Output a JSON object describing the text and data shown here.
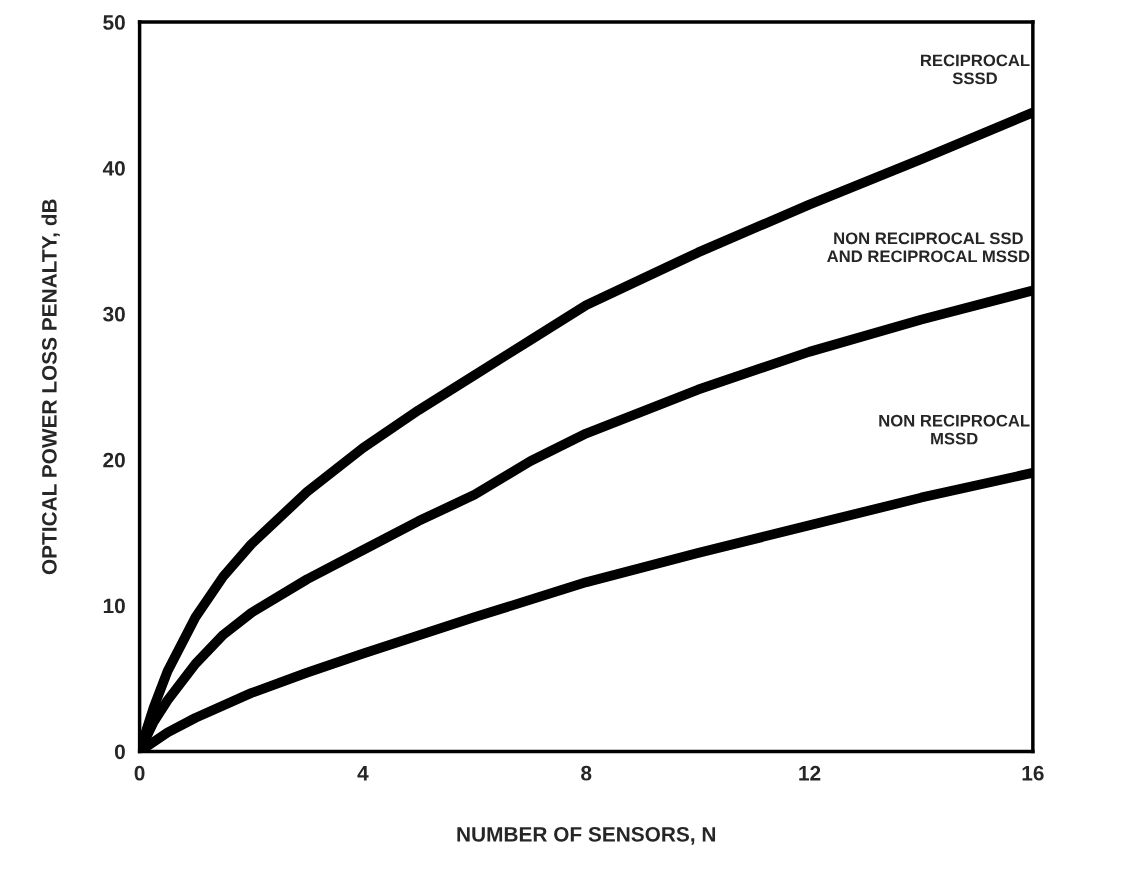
{
  "chart_data": {
    "type": "line",
    "xlabel": "NUMBER OF SENSORS, N",
    "ylabel": "OPTICAL POWER LOSS PENALTY, dB",
    "xlim": [
      0,
      16
    ],
    "ylim": [
      0,
      50
    ],
    "xticks": [
      0,
      4,
      8,
      12,
      16
    ],
    "yticks": [
      0,
      10,
      20,
      30,
      40,
      50
    ],
    "grid": false,
    "legend": false,
    "marker": "none",
    "line_style": "solid",
    "series": [
      {
        "color": "#000000",
        "x": [
          0,
          0.25,
          0.5,
          1,
          1.5,
          2,
          3,
          4,
          5,
          6,
          7,
          8,
          10,
          12,
          14,
          16
        ],
        "values": [
          0,
          3,
          5.5,
          9.2,
          12,
          14.2,
          17.8,
          20.8,
          23.4,
          25.8,
          28.2,
          30.6,
          34.2,
          37.5,
          40.6,
          43.8
        ]
      },
      {
        "color": "#000000",
        "x": [
          0,
          0.25,
          0.5,
          1,
          1.5,
          2,
          3,
          4,
          5,
          6,
          7,
          8,
          10,
          12,
          14,
          16
        ],
        "values": [
          0,
          2,
          3.5,
          6,
          8,
          9.5,
          11.8,
          13.8,
          15.8,
          17.6,
          19.9,
          21.8,
          24.8,
          27.4,
          29.6,
          31.6
        ]
      },
      {
        "color": "#000000",
        "x": [
          0,
          0.5,
          1,
          2,
          3,
          4,
          6,
          8,
          10,
          12,
          14,
          16
        ],
        "values": [
          0,
          1.3,
          2.3,
          4,
          5.4,
          6.7,
          9.2,
          11.6,
          13.6,
          15.5,
          17.4,
          19.1
        ]
      }
    ],
    "annotations": [
      "RECIPROCAL\nSSSD",
      "NON RECIPROCAL SSD\nAND RECIPROCAL MSSD",
      "NON RECIPROCAL\nMSSD"
    ]
  }
}
